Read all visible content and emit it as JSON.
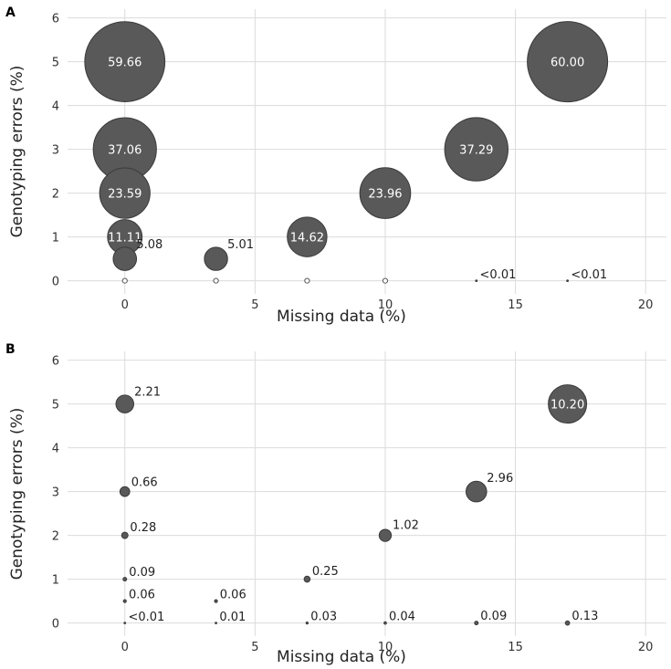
{
  "chart_data": [
    {
      "panel": "A",
      "type": "scatter",
      "xlabel": "Missing data (%)",
      "ylabel": "Genotyping errors (%)",
      "xlim": [
        -2.2,
        20.8
      ],
      "ylim": [
        -0.3,
        6.2
      ],
      "xticks": [
        0,
        5,
        10,
        15,
        20
      ],
      "yticks": [
        0,
        1,
        2,
        3,
        4,
        5,
        6
      ],
      "grid": true,
      "points": [
        {
          "x": 0,
          "y": 5,
          "value": 59.66,
          "label": "59.66"
        },
        {
          "x": 0,
          "y": 3,
          "value": 37.06,
          "label": "37.06"
        },
        {
          "x": 0,
          "y": 2,
          "value": 23.59,
          "label": "23.59"
        },
        {
          "x": 0,
          "y": 1,
          "value": 11.11,
          "label": "11.11"
        },
        {
          "x": 0,
          "y": 0.5,
          "value": 5.08,
          "label": "5.08"
        },
        {
          "x": 0,
          "y": 0,
          "value": 0,
          "label": "",
          "empty": true
        },
        {
          "x": 3.5,
          "y": 0.5,
          "value": 5.01,
          "label": "5.01"
        },
        {
          "x": 3.5,
          "y": 0,
          "value": 0,
          "label": "",
          "empty": true
        },
        {
          "x": 7,
          "y": 1,
          "value": 14.62,
          "label": "14.62"
        },
        {
          "x": 7,
          "y": 0,
          "value": 0,
          "label": "",
          "empty": true
        },
        {
          "x": 10,
          "y": 2,
          "value": 23.96,
          "label": "23.96"
        },
        {
          "x": 10,
          "y": 0,
          "value": 0,
          "label": "",
          "empty": true
        },
        {
          "x": 13.5,
          "y": 3,
          "value": 37.29,
          "label": "37.29"
        },
        {
          "x": 13.5,
          "y": 0,
          "value": 0.005,
          "label": "<0.01"
        },
        {
          "x": 17,
          "y": 5,
          "value": 60.0,
          "label": "60.00"
        },
        {
          "x": 17,
          "y": 0,
          "value": 0.005,
          "label": "<0.01"
        }
      ]
    },
    {
      "panel": "B",
      "type": "scatter",
      "xlabel": "Missing data (%)",
      "ylabel": "Genotyping errors (%)",
      "xlim": [
        -2.2,
        20.8
      ],
      "ylim": [
        -0.3,
        6.2
      ],
      "xticks": [
        0,
        5,
        10,
        15,
        20
      ],
      "yticks": [
        0,
        1,
        2,
        3,
        4,
        5,
        6
      ],
      "grid": true,
      "points": [
        {
          "x": 0,
          "y": 5,
          "value": 2.21,
          "label": "2.21"
        },
        {
          "x": 0,
          "y": 3,
          "value": 0.66,
          "label": "0.66"
        },
        {
          "x": 0,
          "y": 2,
          "value": 0.28,
          "label": "0.28"
        },
        {
          "x": 0,
          "y": 1,
          "value": 0.09,
          "label": "0.09"
        },
        {
          "x": 0,
          "y": 0.5,
          "value": 0.06,
          "label": "0.06"
        },
        {
          "x": 0,
          "y": 0,
          "value": 0.005,
          "label": "<0.01"
        },
        {
          "x": 3.5,
          "y": 0.5,
          "value": 0.06,
          "label": "0.06"
        },
        {
          "x": 3.5,
          "y": 0,
          "value": 0.01,
          "label": "0.01"
        },
        {
          "x": 7,
          "y": 1,
          "value": 0.25,
          "label": "0.25"
        },
        {
          "x": 7,
          "y": 0,
          "value": 0.03,
          "label": "0.03"
        },
        {
          "x": 10,
          "y": 2,
          "value": 1.02,
          "label": "1.02"
        },
        {
          "x": 10,
          "y": 0,
          "value": 0.04,
          "label": "0.04"
        },
        {
          "x": 13.5,
          "y": 3,
          "value": 2.96,
          "label": "2.96"
        },
        {
          "x": 13.5,
          "y": 0,
          "value": 0.09,
          "label": "0.09"
        },
        {
          "x": 17,
          "y": 5,
          "value": 10.2,
          "label": "10.20"
        },
        {
          "x": 17,
          "y": 0,
          "value": 0.13,
          "label": "0.13"
        }
      ]
    }
  ]
}
